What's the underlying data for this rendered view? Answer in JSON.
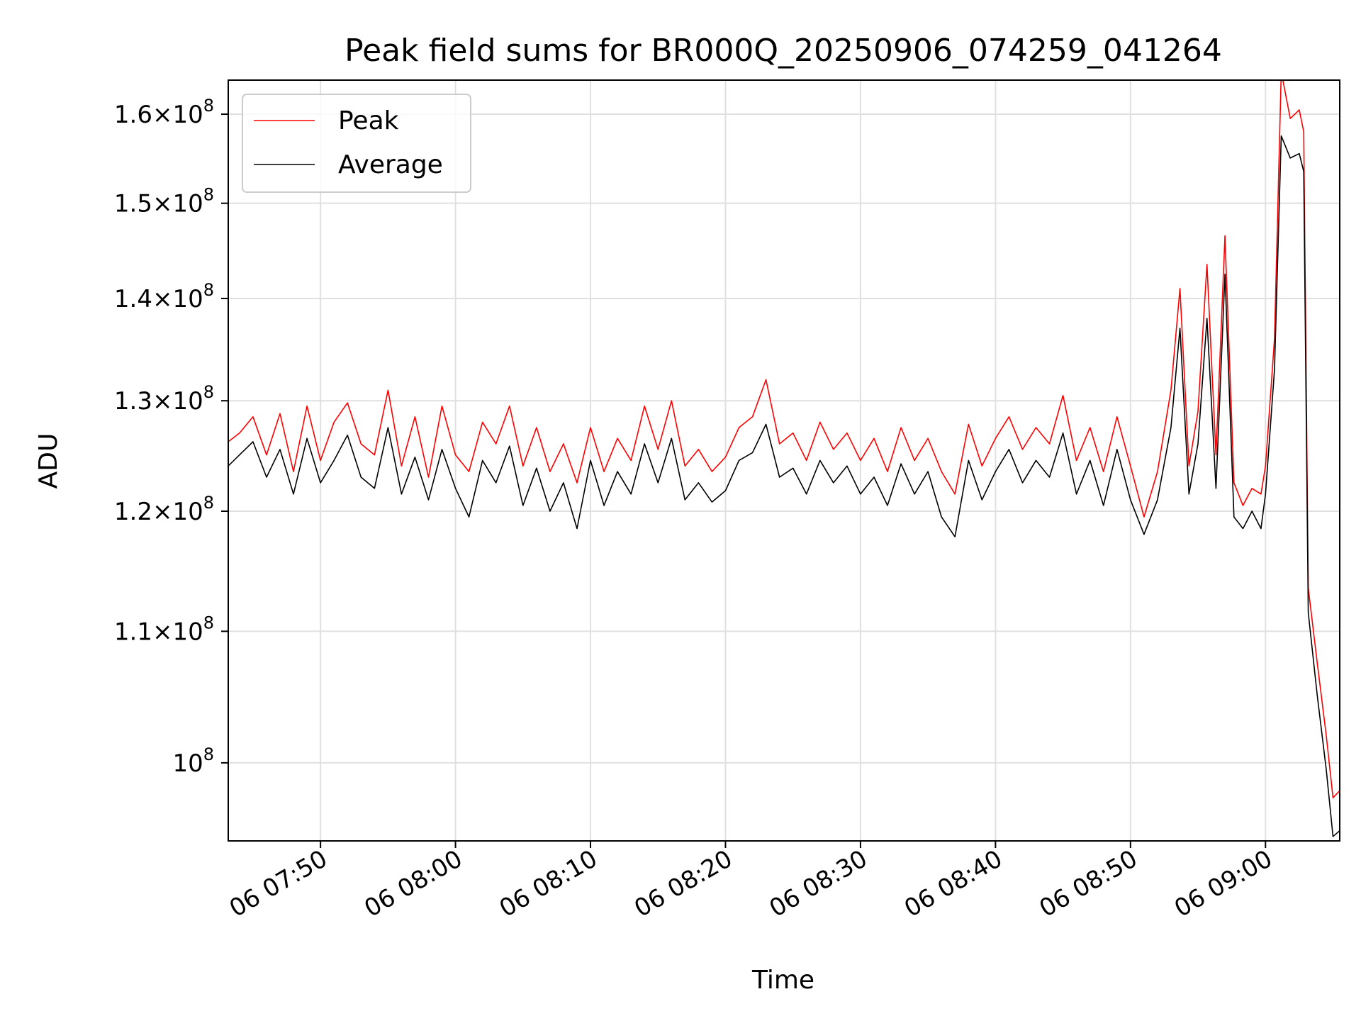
{
  "chart_data": {
    "type": "line",
    "title": "Peak field sums for BR000Q_20250906_074259_041264",
    "xlabel": "Time",
    "ylabel": "ADU",
    "x_range": [
      "06 07:43:10",
      "06 09:05:30"
    ],
    "ylim": [
      94500000,
      164000000
    ],
    "y_scale": "log",
    "grid": true,
    "legend_position": "upper left",
    "x_ticks": [
      {
        "value": "06 07:50",
        "label": "06 07:50"
      },
      {
        "value": "06 08:00",
        "label": "06 08:00"
      },
      {
        "value": "06 08:10",
        "label": "06 08:10"
      },
      {
        "value": "06 08:20",
        "label": "06 08:20"
      },
      {
        "value": "06 08:30",
        "label": "06 08:30"
      },
      {
        "value": "06 08:40",
        "label": "06 08:40"
      },
      {
        "value": "06 08:50",
        "label": "06 08:50"
      },
      {
        "value": "06 09:00",
        "label": "06 09:00"
      }
    ],
    "y_ticks": [
      {
        "value": 100000000,
        "mantissa": "",
        "exponent": "8"
      },
      {
        "value": 110000000,
        "mantissa": "1.1",
        "exponent": "8"
      },
      {
        "value": 120000000,
        "mantissa": "1.2",
        "exponent": "8"
      },
      {
        "value": 130000000,
        "mantissa": "1.3",
        "exponent": "8"
      },
      {
        "value": 140000000,
        "mantissa": "1.4",
        "exponent": "8"
      },
      {
        "value": 150000000,
        "mantissa": "1.5",
        "exponent": "8"
      },
      {
        "value": 160000000,
        "mantissa": "1.6",
        "exponent": "8"
      }
    ],
    "series": [
      {
        "name": "Peak",
        "color": "#ff0000",
        "points": [
          [
            "06 07:43:10",
            126200000
          ],
          [
            "06 07:44:00",
            127000000
          ],
          [
            "06 07:45:00",
            128500000
          ],
          [
            "06 07:46:00",
            125000000
          ],
          [
            "06 07:47:00",
            128800000
          ],
          [
            "06 07:48:00",
            123500000
          ],
          [
            "06 07:49:00",
            129500000
          ],
          [
            "06 07:50:00",
            124500000
          ],
          [
            "06 07:51:00",
            128000000
          ],
          [
            "06 07:52:00",
            129800000
          ],
          [
            "06 07:53:00",
            126000000
          ],
          [
            "06 07:54:00",
            125000000
          ],
          [
            "06 07:55:00",
            131000000
          ],
          [
            "06 07:56:00",
            124000000
          ],
          [
            "06 07:57:00",
            128500000
          ],
          [
            "06 07:58:00",
            123000000
          ],
          [
            "06 07:59:00",
            129500000
          ],
          [
            "06 08:00:00",
            125000000
          ],
          [
            "06 08:01:00",
            123500000
          ],
          [
            "06 08:02:00",
            128000000
          ],
          [
            "06 08:03:00",
            126000000
          ],
          [
            "06 08:04:00",
            129500000
          ],
          [
            "06 08:05:00",
            124000000
          ],
          [
            "06 08:06:00",
            127500000
          ],
          [
            "06 08:07:00",
            123500000
          ],
          [
            "06 08:08:00",
            126000000
          ],
          [
            "06 08:09:00",
            122500000
          ],
          [
            "06 08:10:00",
            127500000
          ],
          [
            "06 08:11:00",
            123500000
          ],
          [
            "06 08:12:00",
            126500000
          ],
          [
            "06 08:13:00",
            124500000
          ],
          [
            "06 08:14:00",
            129500000
          ],
          [
            "06 08:15:00",
            125500000
          ],
          [
            "06 08:16:00",
            130000000
          ],
          [
            "06 08:17:00",
            124000000
          ],
          [
            "06 08:18:00",
            125500000
          ],
          [
            "06 08:19:00",
            123500000
          ],
          [
            "06 08:20:00",
            124800000
          ],
          [
            "06 08:21:00",
            127500000
          ],
          [
            "06 08:22:00",
            128500000
          ],
          [
            "06 08:23:00",
            132000000
          ],
          [
            "06 08:24:00",
            126000000
          ],
          [
            "06 08:25:00",
            127000000
          ],
          [
            "06 08:26:00",
            124500000
          ],
          [
            "06 08:27:00",
            128000000
          ],
          [
            "06 08:28:00",
            125500000
          ],
          [
            "06 08:29:00",
            127000000
          ],
          [
            "06 08:30:00",
            124500000
          ],
          [
            "06 08:31:00",
            126500000
          ],
          [
            "06 08:32:00",
            123500000
          ],
          [
            "06 08:33:00",
            127500000
          ],
          [
            "06 08:34:00",
            124500000
          ],
          [
            "06 08:35:00",
            126500000
          ],
          [
            "06 08:36:00",
            123500000
          ],
          [
            "06 08:37:00",
            121500000
          ],
          [
            "06 08:38:00",
            127800000
          ],
          [
            "06 08:39:00",
            124000000
          ],
          [
            "06 08:40:00",
            126500000
          ],
          [
            "06 08:41:00",
            128500000
          ],
          [
            "06 08:42:00",
            125500000
          ],
          [
            "06 08:43:00",
            127500000
          ],
          [
            "06 08:44:00",
            126000000
          ],
          [
            "06 08:45:00",
            130500000
          ],
          [
            "06 08:46:00",
            124500000
          ],
          [
            "06 08:47:00",
            127500000
          ],
          [
            "06 08:48:00",
            123500000
          ],
          [
            "06 08:49:00",
            128500000
          ],
          [
            "06 08:50:00",
            124000000
          ],
          [
            "06 08:51:00",
            119500000
          ],
          [
            "06 08:52:00",
            123500000
          ],
          [
            "06 08:53:00",
            131000000
          ],
          [
            "06 08:53:40",
            141000000
          ],
          [
            "06 08:54:20",
            124000000
          ],
          [
            "06 08:55:00",
            129000000
          ],
          [
            "06 08:55:40",
            143500000
          ],
          [
            "06 08:56:20",
            125000000
          ],
          [
            "06 08:57:00",
            146500000
          ],
          [
            "06 08:57:40",
            122500000
          ],
          [
            "06 08:58:20",
            120500000
          ],
          [
            "06 08:59:00",
            122000000
          ],
          [
            "06 08:59:40",
            121500000
          ],
          [
            "06 09:00:00",
            124000000
          ],
          [
            "06 09:00:40",
            136000000
          ],
          [
            "06 09:01:10",
            165000000
          ],
          [
            "06 09:01:50",
            159500000
          ],
          [
            "06 09:02:30",
            160500000
          ],
          [
            "06 09:02:50",
            158000000
          ],
          [
            "06 09:03:10",
            113500000
          ],
          [
            "06 09:03:50",
            107500000
          ],
          [
            "06 09:04:30",
            102000000
          ],
          [
            "06 09:05:00",
            97500000
          ],
          [
            "06 09:05:30",
            98000000
          ]
        ]
      },
      {
        "name": "Average",
        "color": "#000000",
        "points": [
          [
            "06 07:43:10",
            124000000
          ],
          [
            "06 07:44:00",
            125000000
          ],
          [
            "06 07:45:00",
            126200000
          ],
          [
            "06 07:46:00",
            123000000
          ],
          [
            "06 07:47:00",
            125500000
          ],
          [
            "06 07:48:00",
            121500000
          ],
          [
            "06 07:49:00",
            126500000
          ],
          [
            "06 07:50:00",
            122500000
          ],
          [
            "06 07:51:00",
            124500000
          ],
          [
            "06 07:52:00",
            126800000
          ],
          [
            "06 07:53:00",
            123000000
          ],
          [
            "06 07:54:00",
            122000000
          ],
          [
            "06 07:55:00",
            127500000
          ],
          [
            "06 07:56:00",
            121500000
          ],
          [
            "06 07:57:00",
            124800000
          ],
          [
            "06 07:58:00",
            121000000
          ],
          [
            "06 07:59:00",
            125500000
          ],
          [
            "06 08:00:00",
            122000000
          ],
          [
            "06 08:01:00",
            119500000
          ],
          [
            "06 08:02:00",
            124500000
          ],
          [
            "06 08:03:00",
            122500000
          ],
          [
            "06 08:04:00",
            125800000
          ],
          [
            "06 08:05:00",
            120500000
          ],
          [
            "06 08:06:00",
            123800000
          ],
          [
            "06 08:07:00",
            120000000
          ],
          [
            "06 08:08:00",
            122500000
          ],
          [
            "06 08:09:00",
            118500000
          ],
          [
            "06 08:10:00",
            124500000
          ],
          [
            "06 08:11:00",
            120500000
          ],
          [
            "06 08:12:00",
            123500000
          ],
          [
            "06 08:13:00",
            121500000
          ],
          [
            "06 08:14:00",
            126000000
          ],
          [
            "06 08:15:00",
            122500000
          ],
          [
            "06 08:16:00",
            126500000
          ],
          [
            "06 08:17:00",
            121000000
          ],
          [
            "06 08:18:00",
            122500000
          ],
          [
            "06 08:19:00",
            120800000
          ],
          [
            "06 08:20:00",
            121800000
          ],
          [
            "06 08:21:00",
            124500000
          ],
          [
            "06 08:22:00",
            125200000
          ],
          [
            "06 08:23:00",
            127800000
          ],
          [
            "06 08:24:00",
            123000000
          ],
          [
            "06 08:25:00",
            123800000
          ],
          [
            "06 08:26:00",
            121500000
          ],
          [
            "06 08:27:00",
            124500000
          ],
          [
            "06 08:28:00",
            122500000
          ],
          [
            "06 08:29:00",
            124000000
          ],
          [
            "06 08:30:00",
            121500000
          ],
          [
            "06 08:31:00",
            123000000
          ],
          [
            "06 08:32:00",
            120500000
          ],
          [
            "06 08:33:00",
            124200000
          ],
          [
            "06 08:34:00",
            121500000
          ],
          [
            "06 08:35:00",
            123500000
          ],
          [
            "06 08:36:00",
            119500000
          ],
          [
            "06 08:37:00",
            117800000
          ],
          [
            "06 08:38:00",
            124500000
          ],
          [
            "06 08:39:00",
            121000000
          ],
          [
            "06 08:40:00",
            123500000
          ],
          [
            "06 08:41:00",
            125500000
          ],
          [
            "06 08:42:00",
            122500000
          ],
          [
            "06 08:43:00",
            124500000
          ],
          [
            "06 08:44:00",
            123000000
          ],
          [
            "06 08:45:00",
            127000000
          ],
          [
            "06 08:46:00",
            121500000
          ],
          [
            "06 08:47:00",
            124500000
          ],
          [
            "06 08:48:00",
            120500000
          ],
          [
            "06 08:49:00",
            125500000
          ],
          [
            "06 08:50:00",
            121000000
          ],
          [
            "06 08:51:00",
            118000000
          ],
          [
            "06 08:52:00",
            121000000
          ],
          [
            "06 08:53:00",
            127500000
          ],
          [
            "06 08:53:40",
            137000000
          ],
          [
            "06 08:54:20",
            121500000
          ],
          [
            "06 08:55:00",
            126000000
          ],
          [
            "06 08:55:40",
            138000000
          ],
          [
            "06 08:56:20",
            122000000
          ],
          [
            "06 08:57:00",
            142500000
          ],
          [
            "06 08:57:40",
            119500000
          ],
          [
            "06 08:58:20",
            118500000
          ],
          [
            "06 08:59:00",
            120000000
          ],
          [
            "06 08:59:40",
            118500000
          ],
          [
            "06 09:00:00",
            121500000
          ],
          [
            "06 09:00:40",
            133000000
          ],
          [
            "06 09:01:10",
            157500000
          ],
          [
            "06 09:01:50",
            155000000
          ],
          [
            "06 09:02:30",
            155500000
          ],
          [
            "06 09:02:50",
            153500000
          ],
          [
            "06 09:03:10",
            111500000
          ],
          [
            "06 09:03:50",
            105000000
          ],
          [
            "06 09:04:30",
            99500000
          ],
          [
            "06 09:05:00",
            94800000
          ],
          [
            "06 09:05:30",
            95200000
          ]
        ]
      }
    ]
  }
}
